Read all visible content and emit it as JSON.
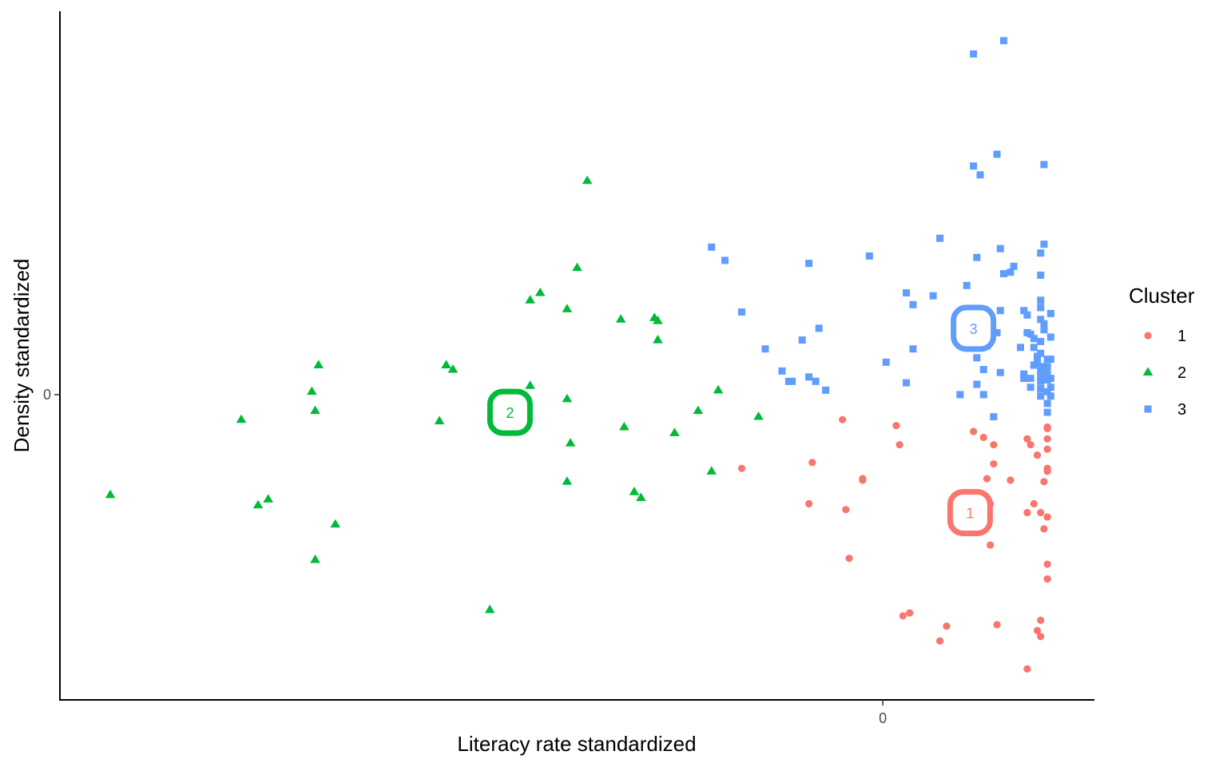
{
  "chart_data": {
    "type": "scatter",
    "xlabel": "Literacy rate standardized",
    "ylabel": "Density standardized",
    "x_ticks": [
      {
        "value": 0,
        "label": "0"
      }
    ],
    "y_ticks": [
      {
        "value": 0,
        "label": "0"
      }
    ],
    "xlim": [
      -2.45,
      0.63
    ],
    "ylim": [
      -2.07,
      2.6
    ],
    "grid": false,
    "legend": {
      "title": "Cluster",
      "placement": "right"
    },
    "series": [
      {
        "name": "1",
        "color": "#F8766D",
        "shape": "circle",
        "centroid": [
          0.26,
          -0.8
        ],
        "points": [
          [
            -0.42,
            -0.5
          ],
          [
            -0.21,
            -0.46
          ],
          [
            -0.22,
            -0.74
          ],
          [
            -0.12,
            -0.17
          ],
          [
            0.04,
            -0.21
          ],
          [
            0.05,
            -0.34
          ],
          [
            -0.06,
            -0.58
          ],
          [
            -0.06,
            -0.57
          ],
          [
            -0.11,
            -0.78
          ],
          [
            -0.1,
            -1.11
          ],
          [
            0.06,
            -1.5
          ],
          [
            0.08,
            -1.48
          ],
          [
            0.19,
            -1.57
          ],
          [
            0.17,
            -1.67
          ],
          [
            0.27,
            -0.25
          ],
          [
            0.3,
            -0.29
          ],
          [
            0.33,
            -0.34
          ],
          [
            0.33,
            -0.47
          ],
          [
            0.31,
            -0.57
          ],
          [
            0.38,
            -0.58
          ],
          [
            0.32,
            -0.74
          ],
          [
            0.32,
            -1.02
          ],
          [
            0.34,
            -1.56
          ],
          [
            0.43,
            -0.3
          ],
          [
            0.44,
            -0.34
          ],
          [
            0.46,
            -0.41
          ],
          [
            0.49,
            -0.22
          ],
          [
            0.49,
            -0.3
          ],
          [
            0.48,
            -0.59
          ],
          [
            0.45,
            -0.74
          ],
          [
            0.43,
            -0.8
          ],
          [
            0.47,
            -0.8
          ],
          [
            0.48,
            -0.91
          ],
          [
            0.47,
            -1.53
          ],
          [
            0.46,
            -1.6
          ],
          [
            0.43,
            -1.86
          ],
          [
            0.47,
            -1.64
          ],
          [
            0.49,
            -1.15
          ],
          [
            0.49,
            -1.25
          ],
          [
            0.49,
            -0.83
          ],
          [
            0.49,
            -0.5
          ],
          [
            0.49,
            -0.52
          ],
          [
            0.49,
            -0.37
          ],
          [
            0.49,
            -0.23
          ]
        ]
      },
      {
        "name": "2",
        "color": "#00BA38",
        "shape": "triangle",
        "centroid": [
          -1.11,
          -0.12
        ],
        "points": [
          [
            -2.3,
            -0.68
          ],
          [
            -1.91,
            -0.17
          ],
          [
            -1.86,
            -0.75
          ],
          [
            -1.83,
            -0.71
          ],
          [
            -1.7,
            0.02
          ],
          [
            -1.69,
            -0.11
          ],
          [
            -1.68,
            0.2
          ],
          [
            -1.63,
            -0.88
          ],
          [
            -1.69,
            -1.12
          ],
          [
            -1.3,
            0.2
          ],
          [
            -1.28,
            0.17
          ],
          [
            -1.32,
            -0.18
          ],
          [
            -1.17,
            -1.46
          ],
          [
            -1.05,
            0.64
          ],
          [
            -1.05,
            0.06
          ],
          [
            -1.02,
            0.69
          ],
          [
            -0.94,
            0.58
          ],
          [
            -0.94,
            -0.03
          ],
          [
            -0.93,
            -0.33
          ],
          [
            -0.94,
            -0.59
          ],
          [
            -0.91,
            0.86
          ],
          [
            -0.88,
            1.45
          ],
          [
            -0.78,
            0.51
          ],
          [
            -0.77,
            -0.22
          ],
          [
            -0.74,
            -0.66
          ],
          [
            -0.72,
            -0.7
          ],
          [
            -0.68,
            0.52
          ],
          [
            -0.67,
            0.37
          ],
          [
            -0.67,
            0.5
          ],
          [
            -0.62,
            -0.26
          ],
          [
            -0.55,
            -0.11
          ],
          [
            -0.51,
            -0.52
          ],
          [
            -0.49,
            0.03
          ],
          [
            -0.37,
            -0.15
          ]
        ]
      },
      {
        "name": "3",
        "color": "#619CFF",
        "shape": "square",
        "centroid": [
          0.27,
          0.45
        ],
        "points": [
          [
            -0.51,
            1.0
          ],
          [
            -0.47,
            0.91
          ],
          [
            -0.42,
            0.56
          ],
          [
            -0.35,
            0.31
          ],
          [
            -0.3,
            0.16
          ],
          [
            -0.28,
            0.09
          ],
          [
            -0.27,
            0.09
          ],
          [
            -0.24,
            0.37
          ],
          [
            -0.2,
            0.09
          ],
          [
            -0.22,
            0.12
          ],
          [
            -0.19,
            0.45
          ],
          [
            -0.22,
            0.89
          ],
          [
            -0.17,
            0.03
          ],
          [
            -0.04,
            0.94
          ],
          [
            0.01,
            0.22
          ],
          [
            0.07,
            0.69
          ],
          [
            0.09,
            0.61
          ],
          [
            0.09,
            0.31
          ],
          [
            0.07,
            0.08
          ],
          [
            0.15,
            0.67
          ],
          [
            0.17,
            1.06
          ],
          [
            0.23,
            0.0
          ],
          [
            0.25,
            0.74
          ],
          [
            0.28,
            0.25
          ],
          [
            0.3,
            0.17
          ],
          [
            0.28,
            0.07
          ],
          [
            0.3,
            0.0
          ],
          [
            0.33,
            -0.15
          ],
          [
            0.28,
            0.93
          ],
          [
            0.27,
            1.55
          ],
          [
            0.29,
            1.49
          ],
          [
            0.27,
            2.31
          ],
          [
            0.36,
            2.4
          ],
          [
            0.34,
            1.63
          ],
          [
            0.35,
            0.99
          ],
          [
            0.35,
            0.57
          ],
          [
            0.34,
            0.42
          ],
          [
            0.35,
            0.15
          ],
          [
            0.31,
            0.42
          ],
          [
            0.31,
            0.33
          ],
          [
            0.36,
            0.82
          ],
          [
            0.38,
            0.83
          ],
          [
            0.39,
            0.87
          ],
          [
            0.41,
            0.32
          ],
          [
            0.42,
            0.11
          ],
          [
            0.42,
            0.14
          ],
          [
            0.43,
            0.54
          ],
          [
            0.43,
            0.42
          ],
          [
            0.44,
            0.11
          ],
          [
            0.44,
            0.05
          ],
          [
            0.45,
            0.2
          ],
          [
            0.45,
            0.38
          ],
          [
            0.46,
            0.26
          ],
          [
            0.46,
            0.24
          ],
          [
            0.47,
            0.51
          ],
          [
            0.47,
            0.59
          ],
          [
            0.47,
            0.64
          ],
          [
            0.47,
            0.81
          ],
          [
            0.47,
            0.96
          ],
          [
            0.47,
            0.36
          ],
          [
            0.47,
            0.28
          ],
          [
            0.47,
            0.16
          ],
          [
            0.47,
            0.12
          ],
          [
            0.47,
            0.04
          ],
          [
            0.47,
            -0.01
          ],
          [
            0.48,
            1.02
          ],
          [
            0.48,
            1.56
          ],
          [
            0.49,
            0.19
          ],
          [
            0.49,
            0.24
          ],
          [
            0.49,
            0.1
          ],
          [
            0.49,
            0.02
          ],
          [
            0.49,
            -0.06
          ],
          [
            0.49,
            -0.12
          ],
          [
            0.5,
            0.55
          ],
          [
            0.5,
            0.39
          ],
          [
            0.5,
            0.24
          ],
          [
            0.5,
            0.11
          ],
          [
            0.5,
            0.05
          ],
          [
            0.5,
            -0.01
          ],
          [
            0.42,
            0.57
          ],
          [
            0.44,
            0.41
          ],
          [
            0.48,
            0.48
          ],
          [
            0.48,
            0.44
          ],
          [
            0.45,
            0.32
          ],
          [
            0.46,
            0.21
          ],
          [
            0.48,
            0.19
          ],
          [
            0.49,
            0.14
          ],
          [
            0.47,
            0.09
          ]
        ]
      }
    ]
  }
}
